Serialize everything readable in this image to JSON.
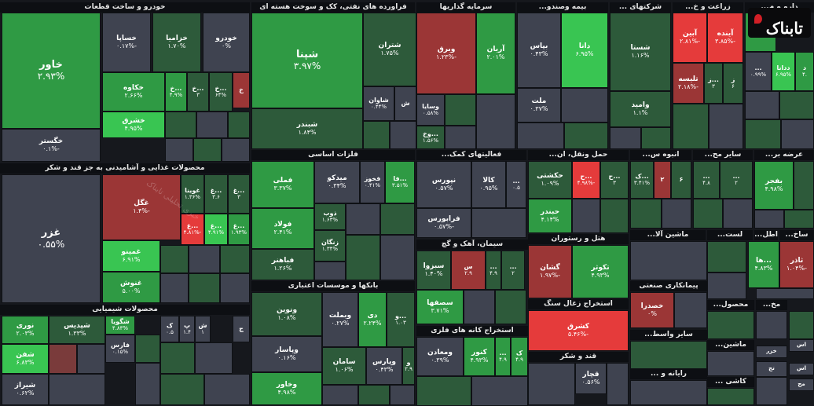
{
  "chart_data": {
    "type": "heatmap",
    "colors": {
      "neg_strong": "#e53b3b",
      "neg_mid": "#9b3636",
      "neg_weak": "#7a3b3b",
      "neutral": "#3f4350",
      "pos_weak": "#2d5a3a",
      "pos_mid": "#2f9a44",
      "pos_strong": "#39c552"
    },
    "sectors": [
      {
        "name": "خودرو و ساخت قطعات",
        "cells": [
          {
            "name": "خاور",
            "change": "۲.۹۳%",
            "level": "pos_mid"
          },
          {
            "name": "خگستر",
            "change": "۰.۱%-",
            "level": "neutral"
          },
          {
            "name": "خساپا",
            "change": "۰.۱۷%-",
            "level": "neutral"
          },
          {
            "name": "خزامیا",
            "change": "۱.۷۰%",
            "level": "pos_weak"
          },
          {
            "name": "خودرو",
            "change": "۰%",
            "level": "neutral"
          },
          {
            "name": "خکاوه",
            "change": "۲.۶۶%",
            "level": "pos_mid"
          },
          {
            "name": "خشرق",
            "change": "۴.۹۵%",
            "level": "pos_strong"
          },
          {
            "name": "خ...",
            "change": "۴.۹%",
            "level": "pos_mid"
          },
          {
            "name": "خ...",
            "change": "۳",
            "level": "pos_weak"
          },
          {
            "name": "خ...",
            "change": "۶۴%",
            "level": "pos_weak"
          },
          {
            "name": "خ",
            "change": "",
            "level": "neg_mid"
          }
        ]
      },
      {
        "name": "محصولات غذایی و آشامیدنی به جز قند و شکر",
        "cells": [
          {
            "name": "غزر",
            "change": "۰.۵۵%",
            "level": "neutral"
          },
          {
            "name": "غگل",
            "change": "۱.۴%-",
            "level": "neg_mid"
          },
          {
            "name": "غوینا",
            "change": "۱.۳۶%",
            "level": "pos_weak"
          },
          {
            "name": "غ...",
            "change": "۳.۶",
            "level": "pos_weak"
          },
          {
            "name": "غ...",
            "change": "۳",
            "level": "pos_weak"
          },
          {
            "name": "غ...",
            "change": "۴.۸۱%-",
            "level": "neg_strong"
          },
          {
            "name": "غ...",
            "change": "۴.۹۱%",
            "level": "pos_strong"
          },
          {
            "name": "غ...",
            "change": "۱.۹۳%",
            "level": "pos_mid"
          },
          {
            "name": "غمینو",
            "change": "۶.۹۱%",
            "level": "pos_strong"
          },
          {
            "name": "غنوش",
            "change": "۵.۰۰%",
            "level": "pos_mid"
          }
        ]
      },
      {
        "name": "محصولات شیمیایی",
        "cells": [
          {
            "name": "نوری",
            "change": "۲.۰۳%",
            "level": "pos_mid"
          },
          {
            "name": "شفن",
            "change": "۶.۸۳%",
            "level": "pos_strong"
          },
          {
            "name": "شیراز",
            "change": "۰.۶۲%",
            "level": "neutral"
          },
          {
            "name": "شپدیس",
            "change": "۱.۳۳%",
            "level": "pos_weak"
          },
          {
            "name": "شگویا",
            "change": "۴.۸۳%",
            "level": "pos_mid"
          },
          {
            "name": "فارس",
            "change": "۰.۱۵%",
            "level": "neutral"
          },
          {
            "name": "ک",
            "change": "۰.۵",
            "level": "neutral"
          },
          {
            "name": "پ",
            "change": "۱.۴",
            "level": "neutral"
          },
          {
            "name": "ش",
            "change": "۱",
            "level": "neutral"
          },
          {
            "name": "ج",
            "change": "",
            "level": "neutral"
          }
        ]
      },
      {
        "name": "فراورده های نفتی، کک و سوخت هسته ای",
        "cells": [
          {
            "name": "شپنا",
            "change": "۳.۹۷%",
            "level": "pos_mid"
          },
          {
            "name": "شبندر",
            "change": "۱.۸۴%",
            "level": "pos_weak"
          },
          {
            "name": "شتران",
            "change": "۱.۷۵%",
            "level": "pos_weak"
          },
          {
            "name": "شاوان",
            "change": "۰.۴۴%",
            "level": "neutral"
          },
          {
            "name": "ش",
            "change": "",
            "level": "neutral"
          }
        ]
      },
      {
        "name": "فلزات اساسی",
        "cells": [
          {
            "name": "فملی",
            "change": "۳.۳۷%",
            "level": "pos_mid"
          },
          {
            "name": "فولاد",
            "change": "۲.۴۱%",
            "level": "pos_mid"
          },
          {
            "name": "فباهنر",
            "change": "۱.۲۶%",
            "level": "pos_weak"
          },
          {
            "name": "میدکو",
            "change": "۰.۳۴%",
            "level": "neutral"
          },
          {
            "name": "فخوز",
            "change": "۰.۴۱%",
            "level": "neutral"
          },
          {
            "name": "فا...",
            "change": "۳.۵۱%",
            "level": "pos_mid"
          },
          {
            "name": "ذوب",
            "change": "۱.۶۳%",
            "level": "pos_weak"
          },
          {
            "name": "زنگان",
            "change": "۱.۳۴%",
            "level": "pos_weak"
          }
        ]
      },
      {
        "name": "بانکها و موسسات اعتباری",
        "cells": [
          {
            "name": "ونوین",
            "change": "۱.۰۸%",
            "level": "pos_weak"
          },
          {
            "name": "وپاسار",
            "change": "۰.۱۶%",
            "level": "neutral"
          },
          {
            "name": "وخاور",
            "change": "۴.۹۸%",
            "level": "pos_mid"
          },
          {
            "name": "وبملت",
            "change": "۰.۲۷%",
            "level": "neutral"
          },
          {
            "name": "دی",
            "change": "۲.۲۴%",
            "level": "pos_mid"
          },
          {
            "name": "و...",
            "change": "۱.۰۳",
            "level": "pos_weak"
          },
          {
            "name": "سامان",
            "change": "۱.۰۶%",
            "level": "pos_weak"
          },
          {
            "name": "وپارس",
            "change": "۰.۴۳%",
            "level": "neutral"
          },
          {
            "name": "و",
            "change": "۲.۹",
            "level": "pos_weak"
          }
        ]
      },
      {
        "name": "سرمایه گذاریها",
        "cells": [
          {
            "name": "وبرق",
            "change": "۱.۲۳%-",
            "level": "neg_mid"
          },
          {
            "name": "آریان",
            "change": "۲.۰۱%",
            "level": "pos_mid"
          },
          {
            "name": "وسایا",
            "change": "۰.۵۸%",
            "level": "neutral"
          },
          {
            "name": "وخ...",
            "change": "۱.۵۶%",
            "level": "pos_weak"
          }
        ]
      },
      {
        "name": "بیمه وصندو...",
        "cells": [
          {
            "name": "بپاس",
            "change": "۰.۴۳%",
            "level": "neutral"
          },
          {
            "name": "دانا",
            "change": "۶.۹۵%",
            "level": "pos_strong"
          },
          {
            "name": "ملت",
            "change": "۰.۳۷%",
            "level": "neutral"
          }
        ]
      },
      {
        "name": "شرکتهای ...",
        "cells": [
          {
            "name": "شستا",
            "change": "۱.۱۶%",
            "level": "pos_weak"
          },
          {
            "name": "وامید",
            "change": "۱.۱%",
            "level": "pos_weak"
          }
        ]
      },
      {
        "name": "زراعت و خ...",
        "cells": [
          {
            "name": "آبین",
            "change": "۲.۸۱%-",
            "level": "neg_strong"
          },
          {
            "name": "آینده",
            "change": "۳.۸۵%-",
            "level": "neg_strong"
          },
          {
            "name": "تلیسه",
            "change": "۲.۱۸%-",
            "level": "neg_mid"
          },
          {
            "name": "ز...",
            "change": "۳",
            "level": "pos_weak"
          },
          {
            "name": "ز",
            "change": "۶",
            "level": "pos_weak"
          }
        ]
      },
      {
        "name": "دارو و م...",
        "cells": [
          {
            "name": "...",
            "change": "۶.۹۶%",
            "level": "pos_mid"
          },
          {
            "name": "...",
            "change": "۰.۹۹%",
            "level": "neutral"
          },
          {
            "name": "ددانا",
            "change": "۶.۹۵%",
            "level": "pos_strong"
          },
          {
            "name": "د",
            "change": "۴.",
            "level": "pos_mid"
          }
        ]
      },
      {
        "name": "فعالیتهای کمک...",
        "cells": [
          {
            "name": "نپورس",
            "change": "۰.۵۷%",
            "level": "neutral"
          },
          {
            "name": "کالا",
            "change": "۰.۹۵%",
            "level": "neutral"
          },
          {
            "name": "...",
            "change": "۰.۵",
            "level": "neutral"
          },
          {
            "name": "فرابورس",
            "change": "۰.۵۷%-",
            "level": "neutral"
          }
        ]
      },
      {
        "name": "حمل ونقل، ان...",
        "cells": [
          {
            "name": "حکشتی",
            "change": "۱.۰۹%",
            "level": "pos_weak"
          },
          {
            "name": "حبندر",
            "change": "۴.۱۴%",
            "level": "pos_mid"
          },
          {
            "name": "ح...",
            "change": "۴.۹۸%-",
            "level": "neg_strong"
          },
          {
            "name": "ح...",
            "change": "۳",
            "level": "pos_weak"
          }
        ]
      },
      {
        "name": "انبوه س...",
        "cells": [
          {
            "name": "ک...",
            "change": "۳.۴۱%",
            "level": "pos_weak"
          },
          {
            "name": "۲",
            "change": "",
            "level": "neg_mid"
          },
          {
            "name": "۶",
            "change": "",
            "level": "pos_weak"
          }
        ]
      },
      {
        "name": "سایر مح...",
        "cells": [
          {
            "name": "...",
            "change": "۴.۸",
            "level": "pos_weak"
          },
          {
            "name": "...",
            "change": "۲",
            "level": "pos_weak"
          }
        ]
      },
      {
        "name": "عرضه بر...",
        "cells": [
          {
            "name": "بفجر",
            "change": "۴.۹۸%",
            "level": "pos_mid"
          }
        ]
      },
      {
        "name": "سیمان، آهک و گچ",
        "cells": [
          {
            "name": "سبزوا",
            "change": "۱.۴۰%",
            "level": "pos_weak"
          },
          {
            "name": "س",
            "change": "۲.۹",
            "level": "neg_mid"
          },
          {
            "name": "سصفها",
            "change": "۳.۷۱%",
            "level": "pos_mid"
          },
          {
            "name": "...",
            "change": "۴.۹",
            "level": "pos_weak"
          },
          {
            "name": "...",
            "change": "۲",
            "level": "pos_weak"
          }
        ]
      },
      {
        "name": "هتل و رستوران",
        "cells": [
          {
            "name": "گشان",
            "change": "۱.۹۷%-",
            "level": "neg_mid"
          },
          {
            "name": "تکوثر",
            "change": "۴.۹۳%",
            "level": "pos_mid"
          }
        ]
      },
      {
        "name": "ماشین آلا...",
        "cells": []
      },
      {
        "name": "لست...",
        "cells": []
      },
      {
        "name": "اطل...",
        "cells": []
      },
      {
        "name": "ساخ...",
        "cells": [
          {
            "name": "ثاذر",
            "change": "۱.۰۴%-",
            "level": "neg_mid"
          },
          {
            "name": "ها...",
            "change": "۴.۸۳%",
            "level": "pos_mid"
          }
        ]
      },
      {
        "name": "پیمانکاری صنعتی",
        "cells": [
          {
            "name": "خصدرا",
            "change": "۰%",
            "level": "neg_mid"
          }
        ]
      },
      {
        "name": "استخراج زغال سنگ",
        "cells": [
          {
            "name": "کشرق",
            "change": "۵.۴۶%-",
            "level": "neg_strong"
          }
        ]
      },
      {
        "name": "استخراج کانه های فلزی",
        "cells": [
          {
            "name": "ومعادن",
            "change": "۰.۳۹%",
            "level": "neutral"
          },
          {
            "name": "کنور",
            "change": "۴.۹۳%",
            "level": "pos_mid"
          },
          {
            "name": "...",
            "change": "۴.۹",
            "level": "pos_mid"
          },
          {
            "name": "ک",
            "change": "۴.۹",
            "level": "pos_mid"
          }
        ]
      },
      {
        "name": "قند و شکر",
        "cells": [
          {
            "name": "قچار",
            "change": "۰.۵۶%",
            "level": "neutral"
          }
        ]
      },
      {
        "name": "سایر واسط...",
        "cells": []
      },
      {
        "name": "رایانه و ...",
        "cells": []
      },
      {
        "name": "محصول...",
        "cells": []
      },
      {
        "name": "مخ...",
        "cells": []
      },
      {
        "name": "ماشین...",
        "cells": []
      },
      {
        "name": "کاشی ...",
        "cells": []
      },
      {
        "name": "اس",
        "cells": [
          {
            "name": "اس",
            "change": "",
            "level": "neutral"
          },
          {
            "name": "خزر",
            "change": "",
            "level": "neutral"
          },
          {
            "name": "اس",
            "change": "",
            "level": "neutral"
          },
          {
            "name": "مح",
            "change": "",
            "level": "neutral"
          },
          {
            "name": "تج",
            "change": "",
            "level": "neutral"
          }
        ]
      }
    ]
  },
  "logo": {
    "text": "تابناک"
  },
  "watermark": {
    "text": "خبری تحلیلی تابناک"
  }
}
